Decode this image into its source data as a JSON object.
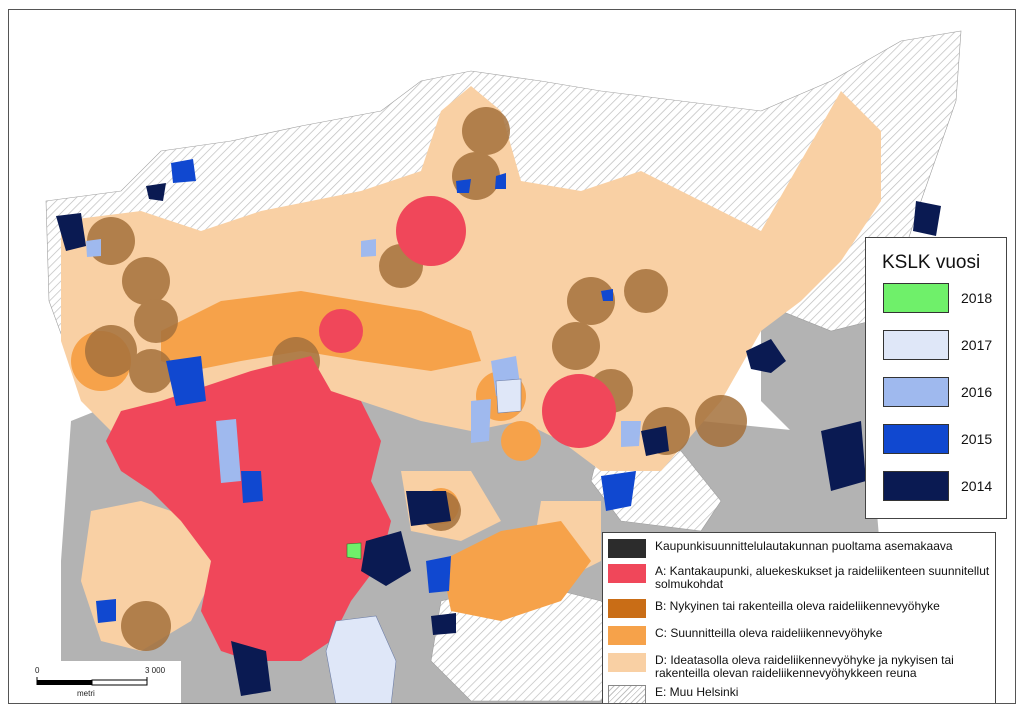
{
  "legend_year": {
    "title": "KSLK vuosi",
    "items": [
      {
        "label": "2018",
        "color": "#6ff06a"
      },
      {
        "label": "2017",
        "color": "#dfe7f8"
      },
      {
        "label": "2016",
        "color": "#9fb9ee"
      },
      {
        "label": "2015",
        "color": "#1048d0"
      },
      {
        "label": "2014",
        "color": "#0a1a52"
      }
    ]
  },
  "legend_category": {
    "items": [
      {
        "label": "Kaupunkisuunnittelulautakunnan puoltama asemakaava",
        "color": "#2c2c2c",
        "pattern": "solid"
      },
      {
        "label": "A: Kantakaupunki, aluekeskukset ja raideliikenteen suunnitellut solmukohdat",
        "color": "#f0475a",
        "pattern": "solid"
      },
      {
        "label": "B: Nykyinen tai rakenteilla oleva raideliikennevyöhyke",
        "color": "#c96d16",
        "pattern": "solid"
      },
      {
        "label": "C: Suunnitteilla oleva raideliikennevyöhyke",
        "color": "#f6a24a",
        "pattern": "solid"
      },
      {
        "label": "D: Ideatasolla oleva raideliikennevyöhyke ja nykyisen tai rakenteilla olevan raideliikennevyöhykkeen reuna",
        "color": "#f9d0a4",
        "pattern": "solid"
      },
      {
        "label": "E: Muu Helsinki",
        "color": "#ffffff",
        "pattern": "hatch"
      }
    ]
  },
  "scalebar": {
    "start": "0",
    "end": "3 000",
    "unit": "metri"
  },
  "colors": {
    "sea": "#ffffff",
    "other_land": "#b4b4b4",
    "hatch": "#c8c8c8",
    "ring_dark": "#a06a3a"
  }
}
